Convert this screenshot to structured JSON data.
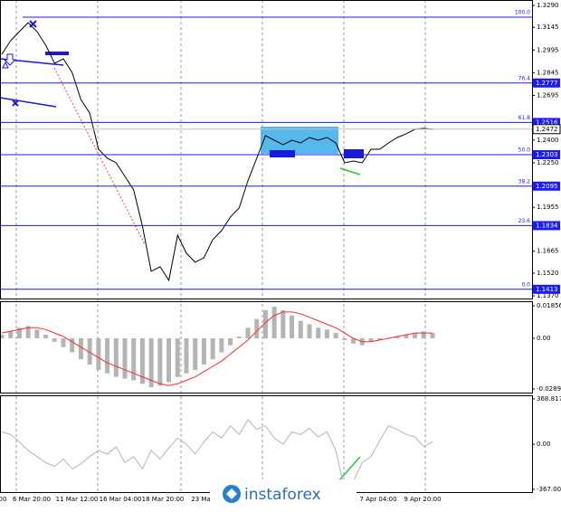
{
  "chart_data": [
    {
      "type": "line",
      "color": "#000000",
      "values": [
        1.2967,
        1.3057,
        1.3117,
        1.3176,
        1.3117,
        1.3027,
        1.2907,
        1.2937,
        1.2847,
        1.2668,
        1.2578,
        1.2339,
        1.2279,
        1.2249,
        1.216,
        1.207,
        1.1831,
        1.1532,
        1.1562,
        1.1472,
        1.1771,
        1.1652,
        1.1592,
        1.1622,
        1.1741,
        1.1801,
        1.1891,
        1.1951,
        1.213,
        1.2279,
        1.2429,
        1.2399,
        1.2369,
        1.2399,
        1.2381,
        1.2417,
        1.2399,
        1.2417,
        1.2381,
        1.2249,
        1.2261,
        1.2249,
        1.2339,
        1.2339,
        1.2381,
        1.2417,
        1.2441,
        1.2471,
        1.2477,
        1.2471
      ],
      "ylim": [
        1.137,
        1.329
      ],
      "yticks": [
        {
          "value": 1.329,
          "label": "1.3290"
        },
        1.3145,
        1.2995,
        1.2845,
        1.2695,
        {
          "value": 1.24,
          "label": "1.2400"
        },
        {
          "value": 1.225,
          "label": "1.2250"
        },
        1.1955,
        1.1665,
        {
          "value": 1.152,
          "label": "1.1520"
        },
        {
          "value": 1.137,
          "label": "1.1370"
        }
      ],
      "levels": [
        {
          "name": "100.0",
          "value": 1.3212,
          "price_box": false
        },
        {
          "name": "76.4",
          "value": 1.2777,
          "price_box": true
        },
        {
          "name": "61.8",
          "value": 1.2516,
          "price_box": true
        },
        {
          "name": "50.0",
          "value": 1.2303,
          "price_box": true
        },
        {
          "name": "38.2",
          "value": 1.2095,
          "price_box": true
        },
        {
          "name": "23.6",
          "value": 1.1834,
          "price_box": true
        },
        {
          "name": "0.0",
          "value": 1.1413,
          "price_box": true
        }
      ],
      "level_color": "#1a1aff",
      "last": 1.2472
    },
    {
      "type": "macd",
      "color": "#b4b4b4",
      "line_color": "#ff2a2a",
      "values": [
        0.002,
        0.004,
        0.006,
        0.007,
        0.005,
        0.002,
        -0.002,
        -0.005,
        -0.008,
        -0.012,
        -0.015,
        -0.018,
        -0.02,
        -0.022,
        -0.023,
        -0.024,
        -0.026,
        -0.028,
        -0.027,
        -0.025,
        -0.022,
        -0.02,
        -0.018,
        -0.015,
        -0.012,
        -0.008,
        -0.004,
        0.001,
        0.006,
        0.011,
        0.016,
        0.018,
        0.016,
        0.013,
        0.01,
        0.008,
        0.006,
        0.005,
        0.003,
        -0.001,
        -0.003,
        -0.004,
        -0.002,
        -0.001,
        0,
        0.001,
        0.002,
        0.003,
        0.004,
        0.003
      ],
      "line_values": [
        0.003,
        0.004,
        0.005,
        0.006,
        0.006,
        0.005,
        0.003,
        0.001,
        -0.002,
        -0.005,
        -0.008,
        -0.011,
        -0.014,
        -0.016,
        -0.018,
        -0.02,
        -0.022,
        -0.024,
        -0.026,
        -0.027,
        -0.026,
        -0.024,
        -0.022,
        -0.019,
        -0.016,
        -0.013,
        -0.009,
        -0.005,
        -0.001,
        0.004,
        0.009,
        0.013,
        0.015,
        0.015,
        0.014,
        0.012,
        0.01,
        0.008,
        0.006,
        0.003,
        0,
        -0.002,
        -0.002,
        -0.001,
        0,
        0.001,
        0.002,
        0.003,
        0.003,
        0.003
      ],
      "ylim": [
        -0.02892,
        0.01856
      ],
      "yticks": [
        0.01856,
        {
          "value": 0,
          "label": "0.00"
        },
        -0.02892
      ]
    },
    {
      "type": "line",
      "color": "#b4b4b4",
      "values": [
        100,
        80,
        20,
        -50,
        -100,
        -150,
        -180,
        -120,
        -200,
        -160,
        -100,
        -50,
        -80,
        -20,
        -150,
        -100,
        -200,
        -50,
        -120,
        -30,
        50,
        0,
        -80,
        20,
        100,
        50,
        150,
        80,
        200,
        120,
        150,
        50,
        0,
        100,
        80,
        130,
        60,
        100,
        -50,
        -367,
        -300,
        -150,
        -100,
        30,
        150,
        120,
        80,
        60,
        -20,
        20
      ],
      "ylim": [
        -367.0034,
        368.8171
      ],
      "yticks": [
        368.8171,
        {
          "value": 0,
          "label": "0.00"
        },
        -367.0034
      ],
      "x_labels": [
        "00",
        "6 Mar 20:00",
        "11 Mar 12:00",
        "16 Mar 04:00",
        "18 Mar 20:00",
        "23 Ma",
        "7 Apr 04:00",
        "9 Apr 20:00"
      ]
    }
  ],
  "watermark": "instaforex"
}
